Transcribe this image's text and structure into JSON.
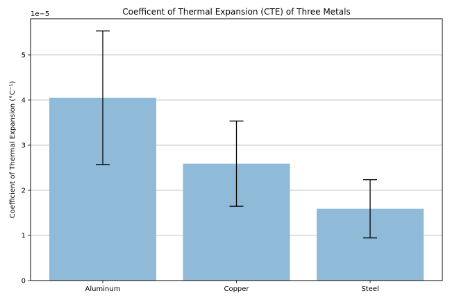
{
  "chart_data": {
    "type": "bar",
    "title": "Coefficent of Thermal Expansion (CTE) of Three Metals",
    "ylabel": "Coefficient of Thermal Expansion (°C⁻¹)",
    "xlabel": "",
    "y_multiplier_label": "1e−5",
    "categories": [
      "Aluminum",
      "Copper",
      "Steel"
    ],
    "values": [
      4.05e-05,
      2.59e-05,
      1.59e-05
    ],
    "errors": [
      1.48e-05,
      9.45e-06,
      6.45e-06
    ],
    "ylim": [
      0,
      5.8e-05
    ],
    "yticks": [
      0,
      1e-05,
      2e-05,
      3e-05,
      4e-05,
      5e-05
    ],
    "ytick_labels": [
      "0",
      "1",
      "2",
      "3",
      "4",
      "5"
    ],
    "grid": "y",
    "bar_color": "#8fbad8",
    "error_color": "#000000"
  }
}
